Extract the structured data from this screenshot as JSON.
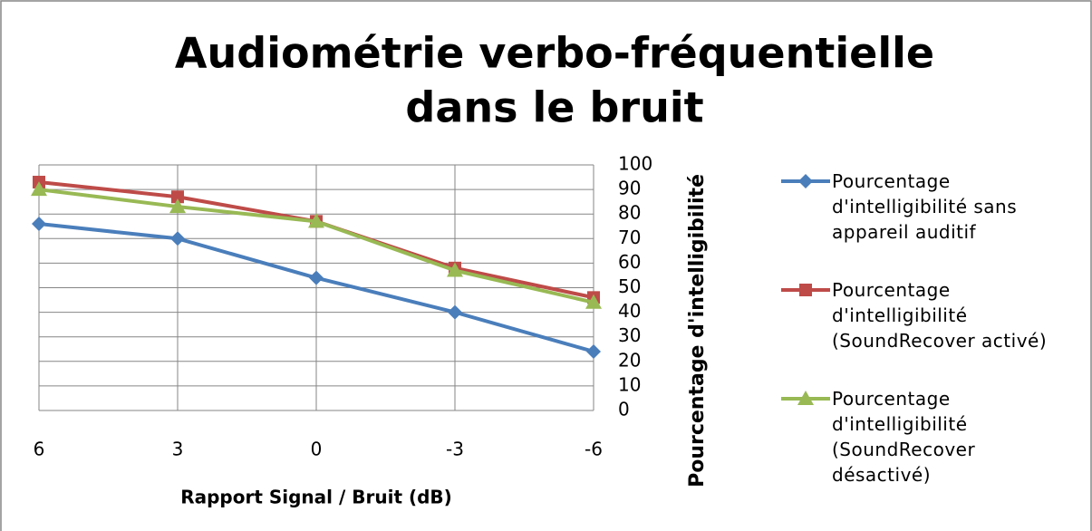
{
  "chart_data": {
    "type": "line",
    "title": [
      "Audiométrie verbo-fréquentielle",
      "dans le bruit"
    ],
    "x_label": "Rapport Signal / Bruit (dB)",
    "y_label": "Pourcentage d'intelligibilité",
    "categories": [
      "6",
      "3",
      "0",
      "-3",
      "-6"
    ],
    "ylim": [
      0,
      100
    ],
    "yticks": [
      0,
      10,
      20,
      30,
      40,
      50,
      60,
      70,
      80,
      90,
      100
    ],
    "grid": true,
    "legend": "right",
    "series": [
      {
        "name": "Pourcentage d'intelligibilité sans appareil auditif",
        "color": "#4a7ebb",
        "marker": "diamond",
        "values": [
          76,
          70,
          54,
          40,
          24
        ]
      },
      {
        "name": "Pourcentage d'intelligibilité (SoundRecover activé)",
        "color": "#be4b48",
        "marker": "square",
        "values": [
          93,
          87,
          77,
          58,
          46
        ]
      },
      {
        "name": "Pourcentage d'intelligibilité (SoundRecover désactivé)",
        "color": "#98b954",
        "marker": "triangle",
        "values": [
          90,
          83,
          77,
          57,
          44
        ]
      }
    ]
  }
}
